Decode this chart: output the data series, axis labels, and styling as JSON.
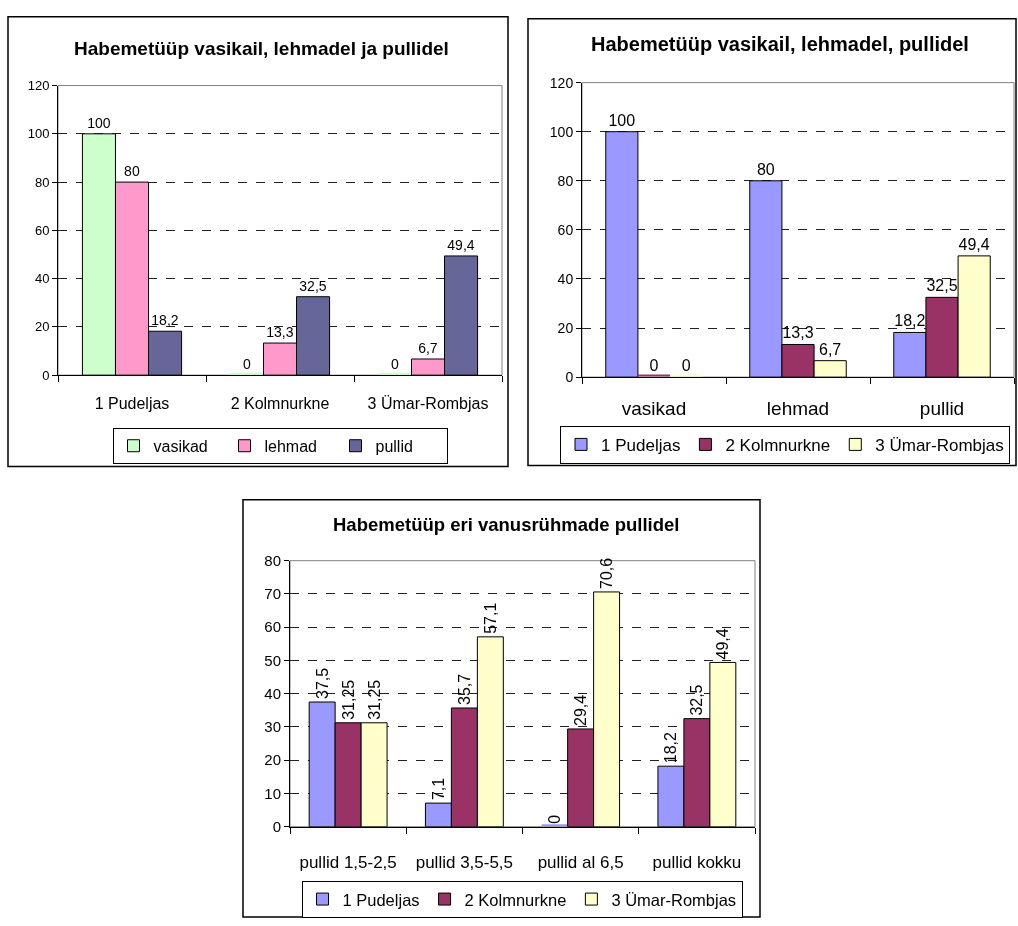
{
  "chart_data": [
    {
      "type": "bar",
      "title": "Habemetüüp vasikail, lehmadel ja pullidel",
      "categories": [
        "1 Pudeljas",
        "2 Kolmnurkne",
        "3 Ümar-Rombjas"
      ],
      "series": [
        {
          "name": "vasikad",
          "color": "#ccffcc",
          "values": [
            100,
            0,
            0
          ],
          "value_labels": [
            "100",
            "0",
            "0"
          ]
        },
        {
          "name": "lehmad",
          "color": "#ff99cc",
          "values": [
            80,
            13.3,
            6.7
          ],
          "value_labels": [
            "80",
            "13,3",
            "6,7"
          ]
        },
        {
          "name": "pullid",
          "color": "#666699",
          "values": [
            18.2,
            32.5,
            49.4
          ],
          "value_labels": [
            "18,2",
            "32,5",
            "49,4"
          ]
        }
      ],
      "ylim": [
        0,
        120
      ],
      "yticks": [
        0,
        20,
        40,
        60,
        80,
        100,
        120
      ],
      "grid": "y",
      "legend": "bottom"
    },
    {
      "type": "bar",
      "title": "Habemetüüp vasikail, lehmadel, pullidel",
      "categories": [
        "vasikad",
        "lehmad",
        "pullid"
      ],
      "series": [
        {
          "name": "1 Pudeljas",
          "color": "#9999ff",
          "values": [
            100,
            80,
            18.2
          ],
          "value_labels": [
            "100",
            "80",
            "18,2"
          ]
        },
        {
          "name": "2 Kolmnurkne",
          "color": "#993366",
          "values": [
            0,
            13.3,
            32.5
          ],
          "value_labels": [
            "0",
            "13,3",
            "32,5"
          ]
        },
        {
          "name": "3 Ümar-Rombjas",
          "color": "#ffffcc",
          "values": [
            0,
            6.7,
            49.4
          ],
          "value_labels": [
            "0",
            "6,7",
            "49,4"
          ]
        }
      ],
      "ylim": [
        0,
        120
      ],
      "yticks": [
        0,
        20,
        40,
        60,
        80,
        100,
        120
      ],
      "grid": "y",
      "legend": "bottom"
    },
    {
      "type": "bar",
      "title": "Habemetüüp eri vanusrühmade pullidel",
      "categories": [
        "pullid 1,5-2,5",
        "pullid 3,5-5,5",
        "pullid al 6,5",
        "pullid kokku"
      ],
      "series": [
        {
          "name": "1 Pudeljas",
          "color": "#9999ff",
          "values": [
            37.5,
            7.1,
            0,
            18.2
          ],
          "value_labels": [
            "37,5",
            "7,1",
            "0",
            "18,2"
          ]
        },
        {
          "name": "2 Kolmnurkne",
          "color": "#993366",
          "values": [
            31.25,
            35.7,
            29.4,
            32.5
          ],
          "value_labels": [
            "31,25",
            "35,7",
            "29,4",
            "32,5"
          ]
        },
        {
          "name": "3 Ümar-Rombjas",
          "color": "#ffffcc",
          "values": [
            31.25,
            57.1,
            70.6,
            49.4
          ],
          "value_labels": [
            "31,25",
            "57,1",
            "70,6",
            "49,4"
          ]
        }
      ],
      "ylim": [
        0,
        80
      ],
      "yticks": [
        0,
        10,
        20,
        30,
        40,
        50,
        60,
        70,
        80
      ],
      "grid": "y",
      "legend": "bottom"
    }
  ]
}
